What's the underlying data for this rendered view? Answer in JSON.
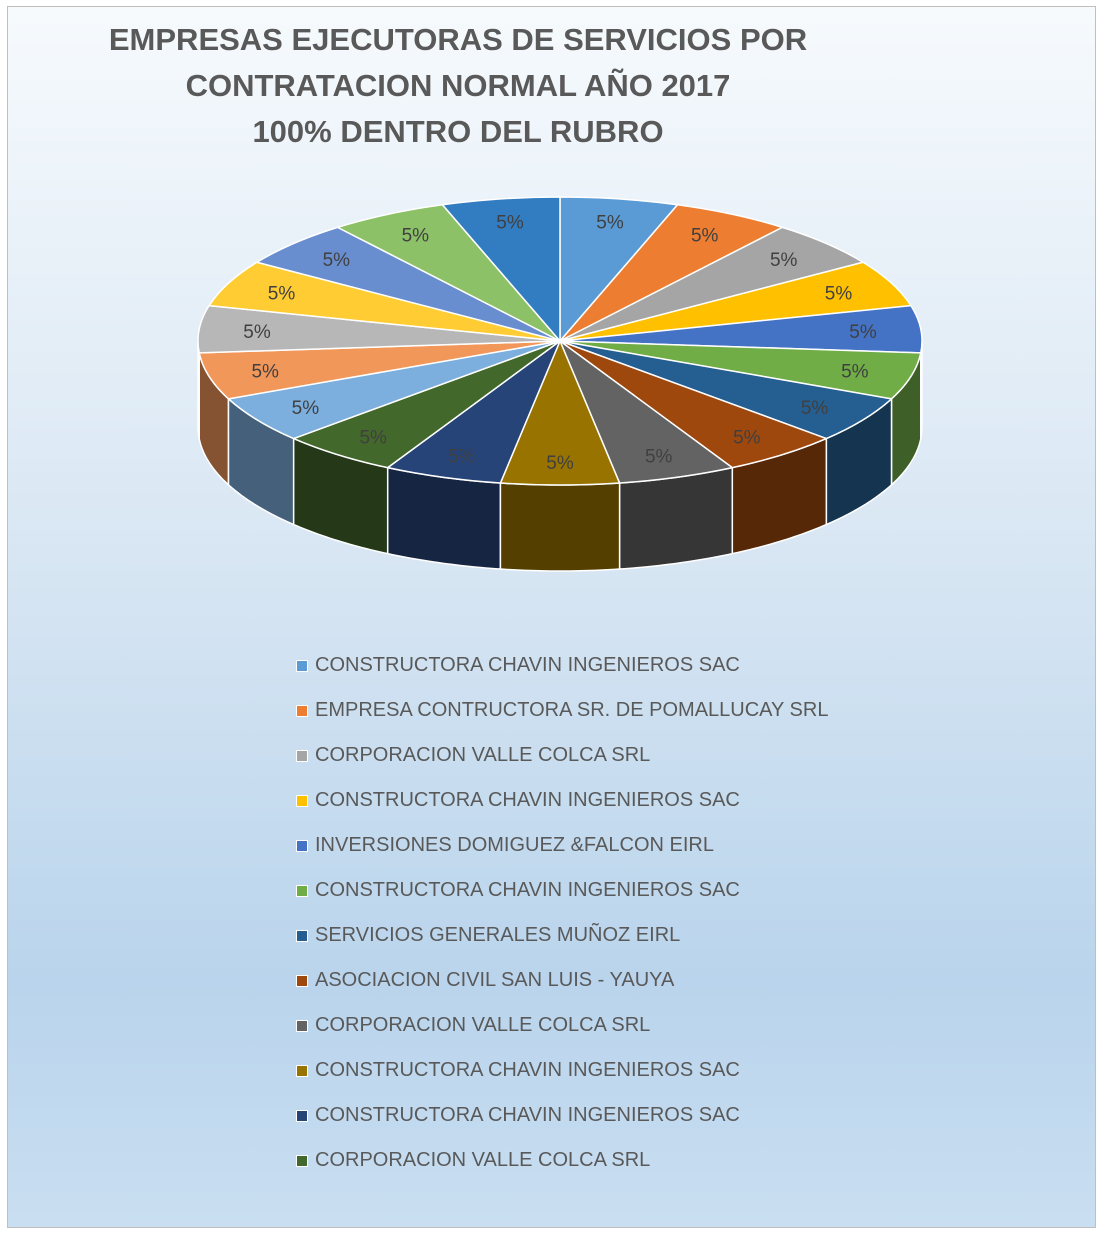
{
  "chart_data": {
    "type": "pie",
    "style": "3d",
    "title_lines": [
      "EMPRESAS EJECUTORAS DE SERVICIOS POR",
      "CONTRATACION NORMAL AÑO 2017",
      "100% DENTRO DEL RUBRO"
    ],
    "legend_position": "bottom",
    "slices": [
      {
        "label": "CONSTRUCTORA CHAVIN INGENIEROS SAC",
        "value": 5,
        "data_label": "5%",
        "color": "#5B9BD5"
      },
      {
        "label": "EMPRESA CONTRUCTORA SR. DE POMALLUCAY SRL",
        "value": 5,
        "data_label": "5%",
        "color": "#ED7D31"
      },
      {
        "label": "CORPORACION VALLE COLCA SRL",
        "value": 5,
        "data_label": "5%",
        "color": "#A5A5A5"
      },
      {
        "label": "CONSTRUCTORA CHAVIN INGENIEROS SAC",
        "value": 5,
        "data_label": "5%",
        "color": "#FFC000"
      },
      {
        "label": "INVERSIONES DOMIGUEZ &FALCON EIRL",
        "value": 5,
        "data_label": "5%",
        "color": "#4472C4"
      },
      {
        "label": "CONSTRUCTORA CHAVIN INGENIEROS SAC",
        "value": 5,
        "data_label": "5%",
        "color": "#70AD47"
      },
      {
        "label": "SERVICIOS GENERALES MUÑOZ EIRL",
        "value": 5,
        "data_label": "5%",
        "color": "#255E91"
      },
      {
        "label": "ASOCIACION CIVIL SAN LUIS - YAUYA",
        "value": 5,
        "data_label": "5%",
        "color": "#9E480E"
      },
      {
        "label": "CORPORACION VALLE COLCA SRL",
        "value": 5,
        "data_label": "5%",
        "color": "#636363"
      },
      {
        "label": "CONSTRUCTORA CHAVIN INGENIEROS SAC",
        "value": 5,
        "data_label": "5%",
        "color": "#997300"
      },
      {
        "label": "CONSTRUCTORA CHAVIN INGENIEROS SAC",
        "value": 5,
        "data_label": "5%",
        "color": "#264478"
      },
      {
        "label": "CORPORACION VALLE COLCA SRL",
        "value": 5,
        "data_label": "5%",
        "color": "#43682B"
      },
      {
        "value": 5,
        "data_label": "5%",
        "color": "#7CAFDD"
      },
      {
        "value": 5,
        "data_label": "5%",
        "color": "#F1975A"
      },
      {
        "value": 5,
        "data_label": "5%",
        "color": "#B7B7B7"
      },
      {
        "value": 5,
        "data_label": "5%",
        "color": "#FFCD33"
      },
      {
        "value": 5,
        "data_label": "5%",
        "color": "#698ED0"
      },
      {
        "value": 5,
        "data_label": "5%",
        "color": "#8CC168"
      },
      {
        "value": 5,
        "data_label": "5%",
        "color": "#327DC2"
      }
    ]
  }
}
